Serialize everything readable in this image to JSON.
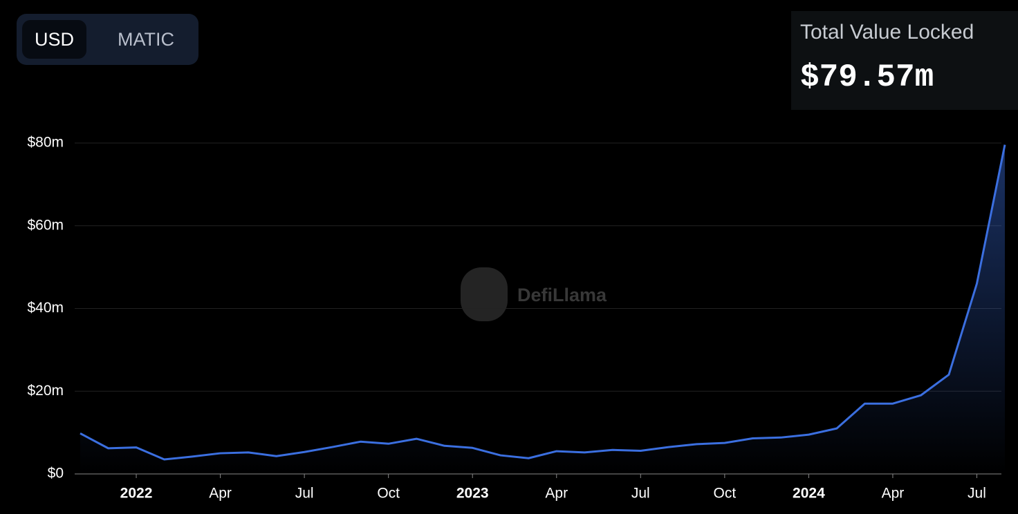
{
  "toggle": {
    "options": [
      "USD",
      "MATIC"
    ],
    "active": 0
  },
  "summary": {
    "label": "Total Value Locked",
    "value": "$79.57m"
  },
  "chart_data": {
    "type": "area",
    "watermark": "DefiLlama",
    "x": [
      "2021-11",
      "2021-12",
      "2022-01",
      "2022-02",
      "2022-03",
      "2022-04",
      "2022-05",
      "2022-06",
      "2022-07",
      "2022-08",
      "2022-09",
      "2022-10",
      "2022-11",
      "2022-12",
      "2023-01",
      "2023-02",
      "2023-03",
      "2023-04",
      "2023-05",
      "2023-06",
      "2023-07",
      "2023-08",
      "2023-09",
      "2023-10",
      "2023-11",
      "2023-12",
      "2024-01",
      "2024-02",
      "2024-03",
      "2024-04",
      "2024-05",
      "2024-06",
      "2024-07",
      "2024-08"
    ],
    "series": [
      {
        "name": "TVL",
        "color": "#3b6fe0",
        "values": [
          9.8,
          6.2,
          6.4,
          3.5,
          4.2,
          5.0,
          5.2,
          4.3,
          5.3,
          6.5,
          7.8,
          7.3,
          8.5,
          6.8,
          6.3,
          4.5,
          3.8,
          5.5,
          5.2,
          5.8,
          5.6,
          6.5,
          7.2,
          7.5,
          8.6,
          8.8,
          9.5,
          11,
          17,
          17,
          19,
          24,
          46,
          79.57
        ]
      }
    ],
    "xlim": [
      "2021-11",
      "2024-08"
    ],
    "xticks": [
      {
        "value": "2022-01",
        "label": "2022"
      },
      {
        "value": "2022-04",
        "label": "Apr"
      },
      {
        "value": "2022-07",
        "label": "Jul"
      },
      {
        "value": "2022-10",
        "label": "Oct"
      },
      {
        "value": "2023-01",
        "label": "2023"
      },
      {
        "value": "2023-04",
        "label": "Apr"
      },
      {
        "value": "2023-07",
        "label": "Jul"
      },
      {
        "value": "2023-10",
        "label": "Oct"
      },
      {
        "value": "2024-01",
        "label": "2024"
      },
      {
        "value": "2024-04",
        "label": "Apr"
      },
      {
        "value": "2024-07",
        "label": "Jul"
      }
    ],
    "ylim": [
      0,
      80
    ],
    "yticks": [
      {
        "value": 0,
        "label": "$0"
      },
      {
        "value": 20,
        "label": "$20m"
      },
      {
        "value": 40,
        "label": "$40m"
      },
      {
        "value": 60,
        "label": "$60m"
      },
      {
        "value": 80,
        "label": "$80m"
      }
    ],
    "grid": true
  }
}
